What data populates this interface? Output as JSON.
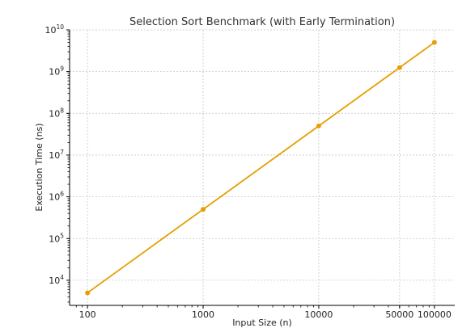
{
  "chart_data": {
    "type": "line",
    "title": "Selection Sort Benchmark (with Early Termination)",
    "xlabel": "Input Size (n)",
    "ylabel": "Execution Time (ns)",
    "x_scale": "log",
    "y_scale": "log",
    "xlim": [
      70,
      150000
    ],
    "ylim": [
      2500,
      10000000000
    ],
    "x_ticks": [
      100,
      1000,
      10000,
      50000,
      100000
    ],
    "x_tick_labels": [
      "100",
      "1000",
      "10000",
      "50000",
      "100000"
    ],
    "y_ticks": [
      10000,
      100000,
      1000000,
      10000000,
      100000000,
      1000000000,
      10000000000
    ],
    "y_tick_labels": [
      {
        "base": "10",
        "exp": "4"
      },
      {
        "base": "10",
        "exp": "5"
      },
      {
        "base": "10",
        "exp": "6"
      },
      {
        "base": "10",
        "exp": "7"
      },
      {
        "base": "10",
        "exp": "8"
      },
      {
        "base": "10",
        "exp": "9"
      },
      {
        "base": "10",
        "exp": "10"
      }
    ],
    "grid": true,
    "legend": "none",
    "series": [
      {
        "color": "#e69f00",
        "x": [
          100,
          1000,
          10000,
          50000,
          100000
        ],
        "y": [
          5000,
          500000,
          50000000,
          1250000000,
          5000000000
        ]
      }
    ]
  }
}
